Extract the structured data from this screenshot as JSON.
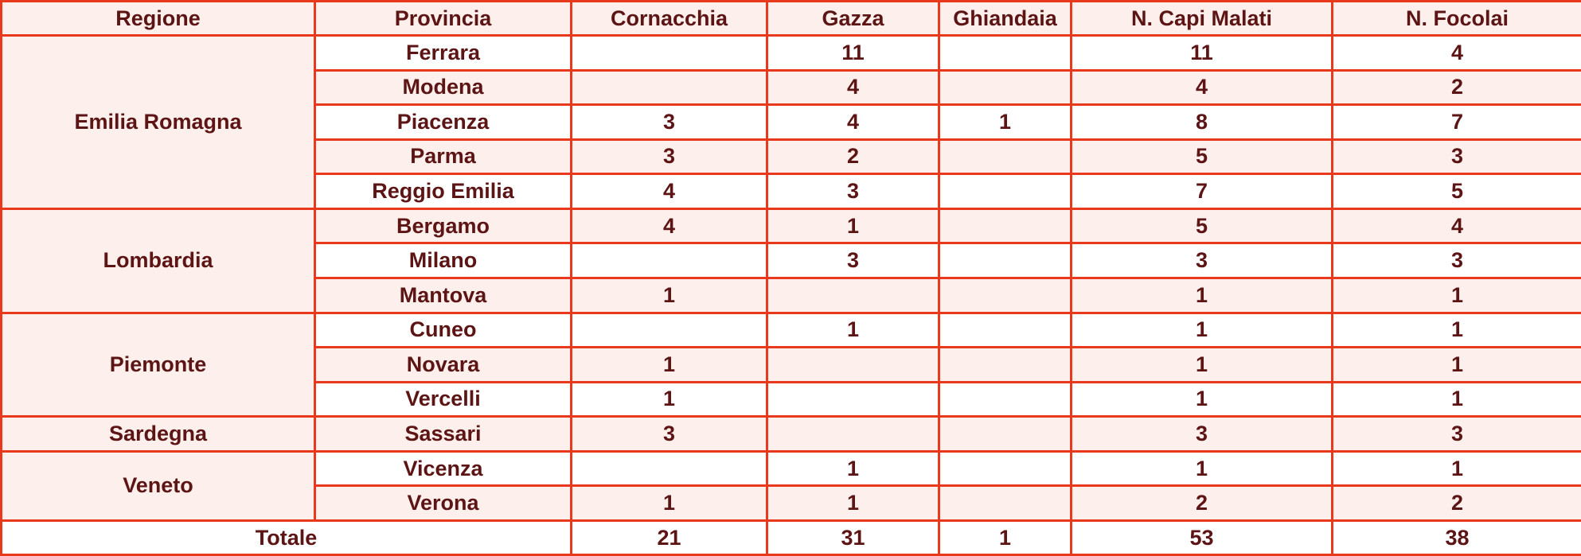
{
  "headers": [
    "Regione",
    "Provincia",
    "Cornacchia",
    "Gazza",
    "Ghiandaia",
    "N. Capi Malati",
    "N. Focolai"
  ],
  "regions": [
    {
      "name": "Emilia Romagna",
      "rows": [
        {
          "provincia": "Ferrara",
          "cornacchia": "",
          "gazza": "11",
          "ghiandaia": "",
          "capi": "11",
          "focolai": "4"
        },
        {
          "provincia": "Modena",
          "cornacchia": "",
          "gazza": "4",
          "ghiandaia": "",
          "capi": "4",
          "focolai": "2"
        },
        {
          "provincia": "Piacenza",
          "cornacchia": "3",
          "gazza": "4",
          "ghiandaia": "1",
          "capi": "8",
          "focolai": "7"
        },
        {
          "provincia": "Parma",
          "cornacchia": "3",
          "gazza": "2",
          "ghiandaia": "",
          "capi": "5",
          "focolai": "3"
        },
        {
          "provincia": "Reggio Emilia",
          "cornacchia": "4",
          "gazza": "3",
          "ghiandaia": "",
          "capi": "7",
          "focolai": "5"
        }
      ]
    },
    {
      "name": "Lombardia",
      "rows": [
        {
          "provincia": "Bergamo",
          "cornacchia": "4",
          "gazza": "1",
          "ghiandaia": "",
          "capi": "5",
          "focolai": "4"
        },
        {
          "provincia": "Milano",
          "cornacchia": "",
          "gazza": "3",
          "ghiandaia": "",
          "capi": "3",
          "focolai": "3"
        },
        {
          "provincia": "Mantova",
          "cornacchia": "1",
          "gazza": "",
          "ghiandaia": "",
          "capi": "1",
          "focolai": "1"
        }
      ]
    },
    {
      "name": "Piemonte",
      "rows": [
        {
          "provincia": "Cuneo",
          "cornacchia": "",
          "gazza": "1",
          "ghiandaia": "",
          "capi": "1",
          "focolai": "1"
        },
        {
          "provincia": "Novara",
          "cornacchia": "1",
          "gazza": "",
          "ghiandaia": "",
          "capi": "1",
          "focolai": "1"
        },
        {
          "provincia": "Vercelli",
          "cornacchia": "1",
          "gazza": "",
          "ghiandaia": "",
          "capi": "1",
          "focolai": "1"
        }
      ]
    },
    {
      "name": "Sardegna",
      "rows": [
        {
          "provincia": "Sassari",
          "cornacchia": "3",
          "gazza": "",
          "ghiandaia": "",
          "capi": "3",
          "focolai": "3"
        }
      ]
    },
    {
      "name": "Veneto",
      "rows": [
        {
          "provincia": "Vicenza",
          "cornacchia": "",
          "gazza": "1",
          "ghiandaia": "",
          "capi": "1",
          "focolai": "1"
        },
        {
          "provincia": "Verona",
          "cornacchia": "1",
          "gazza": "1",
          "ghiandaia": "",
          "capi": "2",
          "focolai": "2"
        }
      ]
    }
  ],
  "total": {
    "label": "Totale",
    "cornacchia": "21",
    "gazza": "31",
    "ghiandaia": "1",
    "capi": "53",
    "focolai": "38"
  },
  "colors": {
    "border": "#e8391c",
    "text": "#5c1414",
    "shade": "#fdf0ec"
  }
}
